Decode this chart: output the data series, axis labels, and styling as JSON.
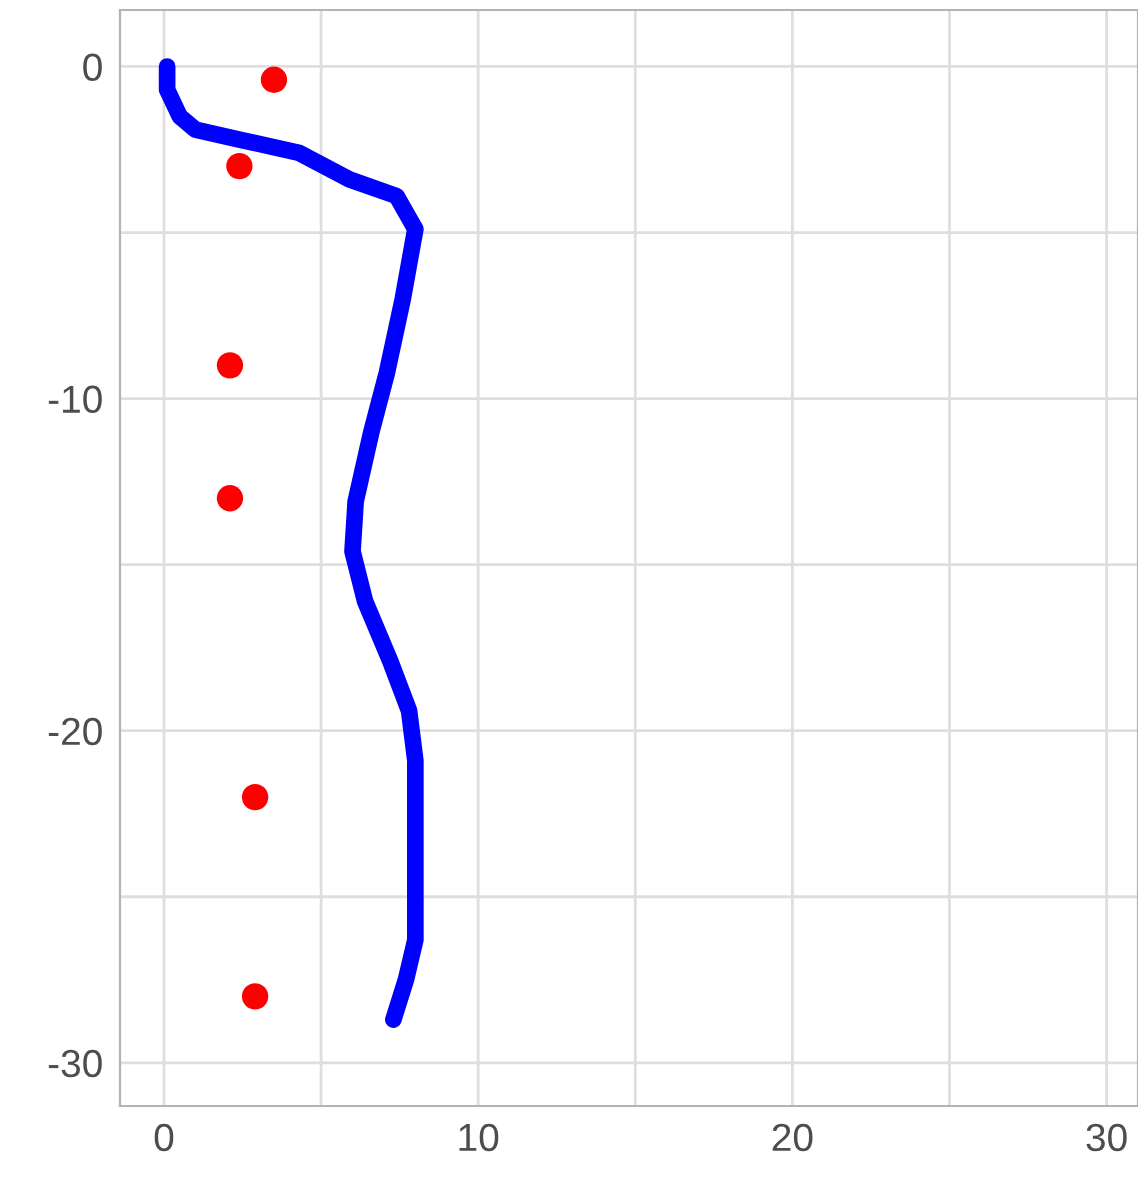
{
  "chart_data": {
    "type": "scatter",
    "x": [
      0.1,
      0.1,
      0.5,
      1,
      2.4,
      4.3,
      5.9,
      7.4,
      8,
      7.6,
      7.1,
      6.6,
      6.1,
      6,
      6.4,
      7.2,
      7.8,
      8,
      8,
      8,
      7.7,
      7.3
    ],
    "series": [
      {
        "type": "line",
        "marker": "none",
        "color": "#0000ff",
        "values": [
          0,
          -0.7,
          -1.5,
          -1.9,
          -2.2,
          -2.6,
          -3.4,
          -3.9,
          -4.9,
          -7,
          -9.2,
          -11,
          -13.1,
          -14.6,
          -16.1,
          -17.9,
          -19.4,
          -20.9,
          -23.3,
          -26.3,
          -27.5,
          -28.7
        ]
      },
      {
        "marker": "circle",
        "color": "#ff0000",
        "x": [
          3.5,
          2.4,
          2.1,
          2.1,
          2.9,
          2.9
        ],
        "values": [
          -0.4,
          -3,
          -9,
          -13,
          -22,
          -28
        ]
      }
    ],
    "xlim": [
      -1.4,
      31
    ],
    "ylim": [
      -31.3,
      1.7
    ],
    "xticks": [
      0,
      {
        "value": 5,
        "label": null
      },
      10,
      {
        "value": 15,
        "label": null
      },
      20,
      {
        "value": 25,
        "label": null
      },
      30
    ],
    "yticks": [
      -30,
      {
        "value": -25,
        "label": null
      },
      -20,
      {
        "value": -15,
        "label": null
      },
      -10,
      {
        "value": -5,
        "label": null
      },
      0
    ],
    "grid": true,
    "line_style": "solid"
  }
}
